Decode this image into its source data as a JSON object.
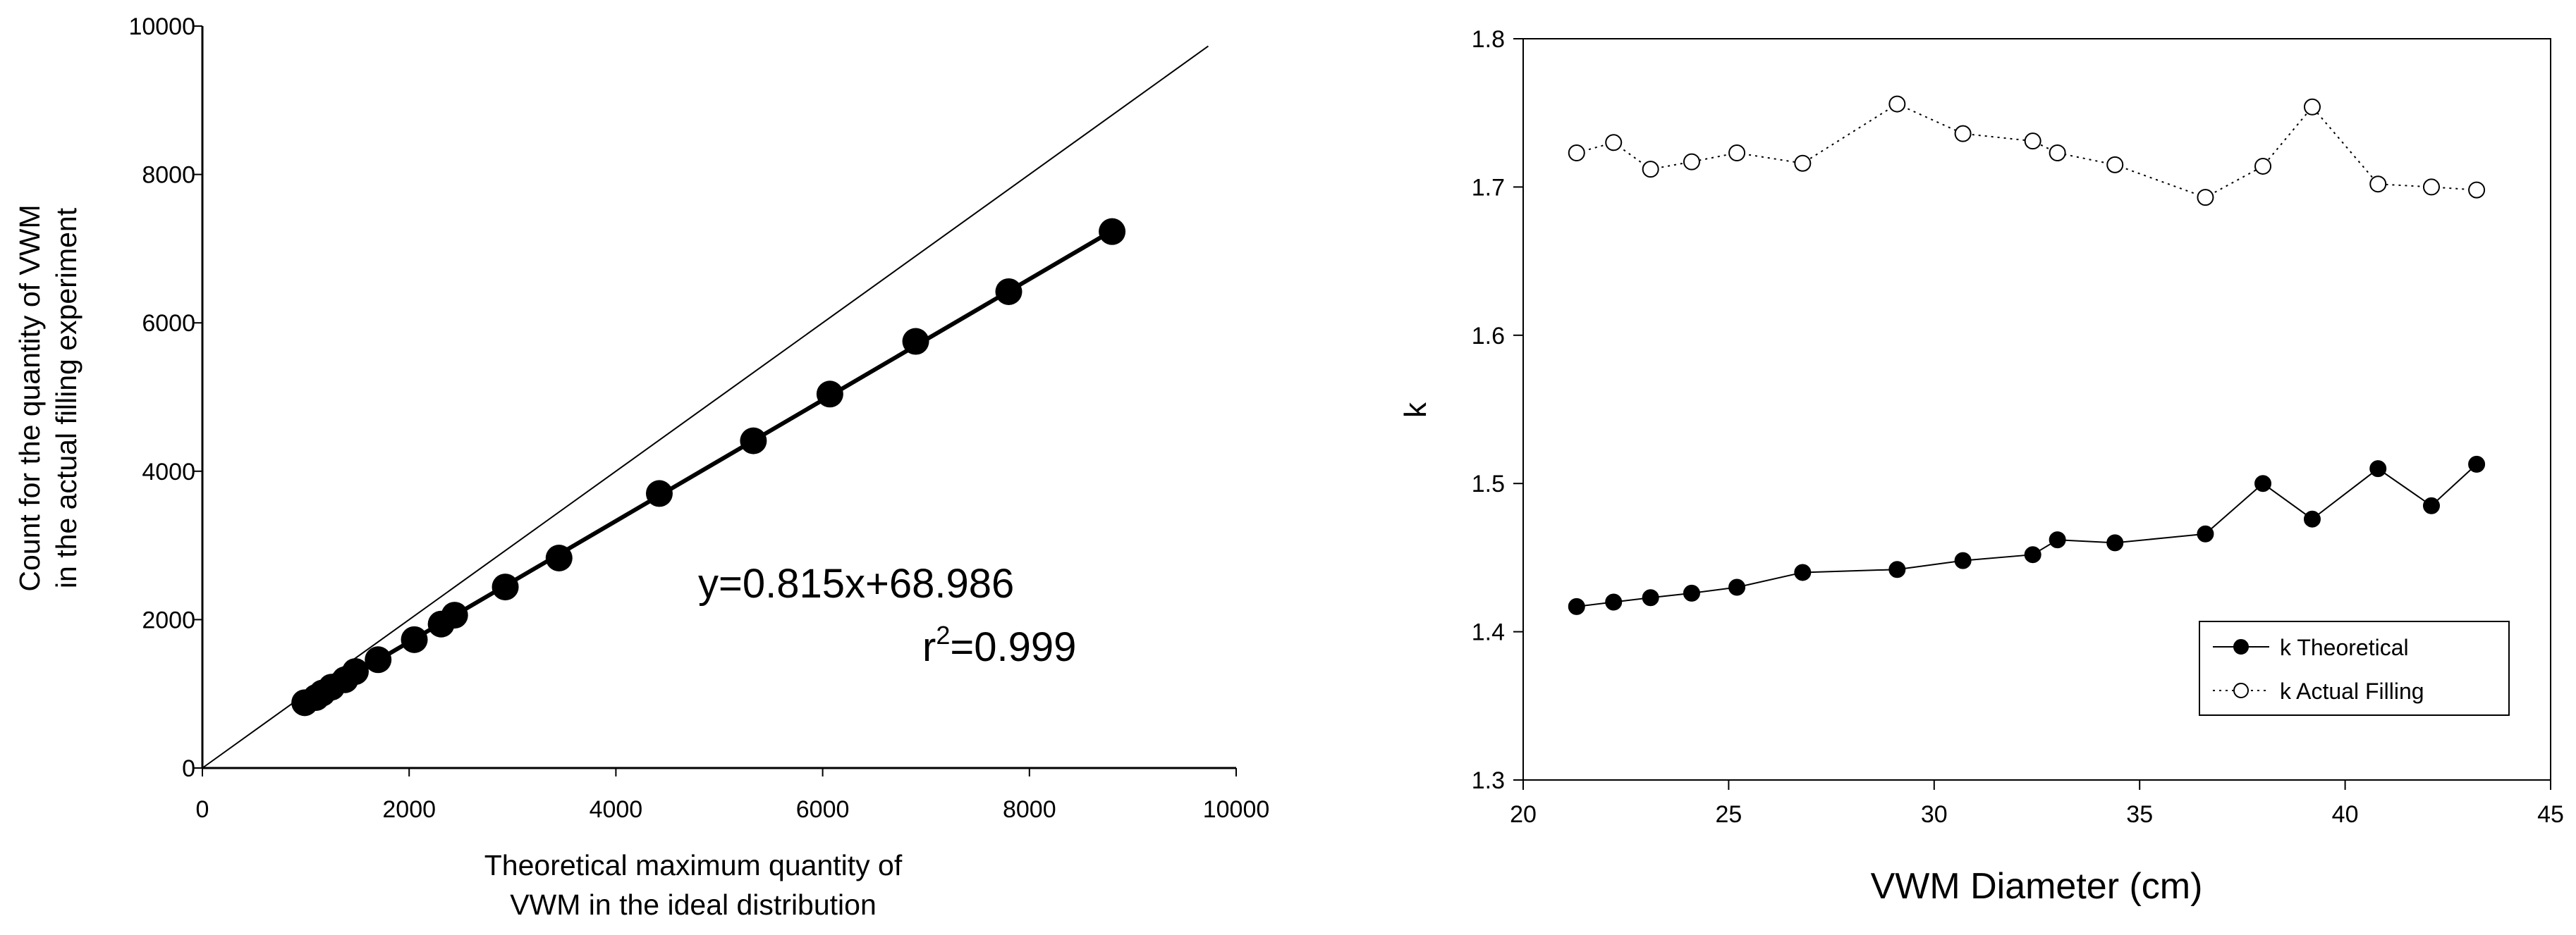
{
  "chart_data": [
    {
      "type": "scatter",
      "title": "",
      "xlabel": [
        "Theoretical maximum quantity of",
        "VWM in the ideal distribution"
      ],
      "ylabel": [
        "Count for the quantity of VWM",
        "in the actual filling experiment"
      ],
      "xlim": [
        0,
        10000
      ],
      "ylim": [
        0,
        10000
      ],
      "xticks": [
        "0",
        "2000",
        "4000",
        "6000",
        "8000",
        "10000"
      ],
      "yticks": [
        "0",
        "2000",
        "4000",
        "6000",
        "8000",
        "10000"
      ],
      "grid": false,
      "reference_line": {
        "from": [
          0,
          0
        ],
        "to": [
          9730,
          9730
        ]
      },
      "fit_line": {
        "slope": 0.815,
        "intercept": 68.986,
        "x_range": [
          1000,
          8800
        ]
      },
      "annotations": {
        "equation": "y=0.815x+68.986",
        "r2_prefix": "r",
        "r2_sup": "2",
        "r2_value": "=0.999"
      },
      "x": [
        990,
        1100,
        1160,
        1250,
        1380,
        1480,
        1700,
        2050,
        2310,
        2440,
        2930,
        3450,
        4420,
        5330,
        6070,
        6900,
        7800,
        8800
      ],
      "y": [
        880,
        950,
        1010,
        1090,
        1190,
        1300,
        1460,
        1730,
        1940,
        2060,
        2440,
        2830,
        3700,
        4410,
        5040,
        5750,
        6420,
        7230
      ]
    },
    {
      "type": "line",
      "title": "",
      "xlabel": "VWM Diameter  (cm)",
      "ylabel": "k",
      "xlim": [
        20,
        45
      ],
      "ylim": [
        1.3,
        1.8
      ],
      "xticks": [
        "20",
        "25",
        "30",
        "35",
        "40",
        "45"
      ],
      "yticks": [
        "1.3",
        "1.4",
        "1.5",
        "1.6",
        "1.7",
        "1.8"
      ],
      "grid": false,
      "legend_placement": "bottom-right",
      "x": [
        21.3,
        22.2,
        23.1,
        24.1,
        25.2,
        26.8,
        29.1,
        30.7,
        32.4,
        33.0,
        34.4,
        36.6,
        38.0,
        39.2,
        40.8,
        42.1,
        43.2
      ],
      "series": [
        {
          "name": "k Theoretical",
          "marker": "filled-circle",
          "line": "solid",
          "values": [
            1.417,
            1.42,
            1.423,
            1.426,
            1.43,
            1.44,
            1.442,
            1.448,
            1.452,
            1.462,
            1.46,
            1.466,
            1.5,
            1.476,
            1.51,
            1.485,
            1.513
          ]
        },
        {
          "name": "k Actual Filling",
          "marker": "open-circle",
          "line": "dotted",
          "values": [
            1.723,
            1.73,
            1.712,
            1.717,
            1.723,
            1.716,
            1.756,
            1.736,
            1.731,
            1.723,
            1.715,
            1.693,
            1.714,
            1.754,
            1.702,
            1.7,
            1.698
          ]
        }
      ]
    }
  ]
}
